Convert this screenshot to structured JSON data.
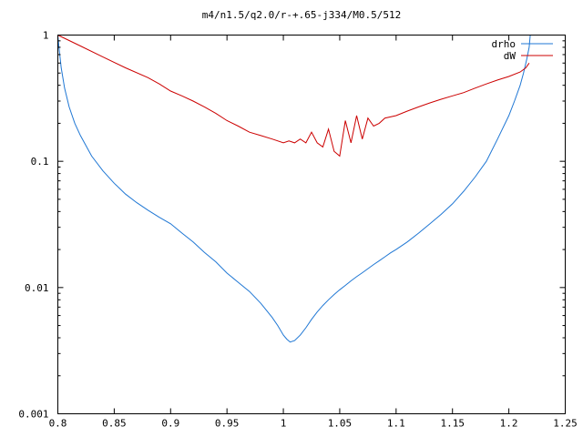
{
  "chart_data": {
    "type": "line",
    "title": "m4/n1.5/q2.0/r-+.65-j334/M0.5/512",
    "xlabel": "",
    "ylabel": "",
    "xlim": [
      0.8,
      1.25
    ],
    "ylim": [
      0.001,
      1
    ],
    "yscale": "log",
    "grid": false,
    "legend_position": "top-right",
    "x_ticks": [
      0.8,
      0.85,
      0.9,
      0.95,
      1,
      1.05,
      1.1,
      1.15,
      1.2,
      1.25
    ],
    "x_tick_labels": [
      "0.8",
      "0.85",
      "0.9",
      "0.95",
      "1",
      "1.05",
      "1.1",
      "1.15",
      "1.2",
      "1.25"
    ],
    "y_ticks": [
      0.001,
      0.01,
      0.1,
      1
    ],
    "y_tick_labels": [
      "0.001",
      "0.01",
      "0.1",
      "1"
    ],
    "series": [
      {
        "name": "drho",
        "color": "#1f77d4",
        "x": [
          0.8,
          0.801,
          0.803,
          0.806,
          0.81,
          0.815,
          0.82,
          0.83,
          0.84,
          0.85,
          0.86,
          0.87,
          0.88,
          0.89,
          0.9,
          0.91,
          0.92,
          0.93,
          0.94,
          0.95,
          0.96,
          0.97,
          0.98,
          0.99,
          0.995,
          1.0,
          1.003,
          1.006,
          1.01,
          1.015,
          1.02,
          1.025,
          1.03,
          1.035,
          1.04,
          1.045,
          1.05,
          1.055,
          1.06,
          1.065,
          1.07,
          1.075,
          1.08,
          1.085,
          1.09,
          1.095,
          1.1,
          1.11,
          1.12,
          1.13,
          1.14,
          1.15,
          1.16,
          1.17,
          1.18,
          1.19,
          1.2,
          1.205,
          1.21,
          1.213,
          1.216,
          1.218,
          1.219
        ],
        "y": [
          1.0,
          0.8,
          0.55,
          0.38,
          0.27,
          0.2,
          0.16,
          0.11,
          0.084,
          0.067,
          0.055,
          0.047,
          0.041,
          0.036,
          0.032,
          0.027,
          0.023,
          0.019,
          0.016,
          0.013,
          0.011,
          0.0093,
          0.0075,
          0.0058,
          0.005,
          0.0042,
          0.0039,
          0.0037,
          0.0038,
          0.0042,
          0.0048,
          0.0056,
          0.0064,
          0.0072,
          0.008,
          0.0088,
          0.0096,
          0.0104,
          0.0113,
          0.0122,
          0.0131,
          0.0141,
          0.0152,
          0.0163,
          0.0175,
          0.0188,
          0.02,
          0.023,
          0.027,
          0.032,
          0.038,
          0.046,
          0.058,
          0.075,
          0.1,
          0.15,
          0.23,
          0.3,
          0.4,
          0.5,
          0.65,
          0.8,
          1.0
        ]
      },
      {
        "name": "dW",
        "color": "#cc0000",
        "x": [
          0.8,
          0.82,
          0.84,
          0.86,
          0.88,
          0.89,
          0.9,
          0.91,
          0.92,
          0.93,
          0.94,
          0.95,
          0.96,
          0.97,
          0.98,
          0.99,
          1.0,
          1.005,
          1.01,
          1.015,
          1.02,
          1.025,
          1.03,
          1.035,
          1.04,
          1.045,
          1.05,
          1.055,
          1.06,
          1.065,
          1.07,
          1.075,
          1.08,
          1.085,
          1.09,
          1.1,
          1.11,
          1.12,
          1.13,
          1.14,
          1.15,
          1.16,
          1.17,
          1.18,
          1.19,
          1.2,
          1.21,
          1.215,
          1.218
        ],
        "y": [
          1.0,
          0.82,
          0.67,
          0.55,
          0.46,
          0.41,
          0.36,
          0.33,
          0.3,
          0.27,
          0.24,
          0.21,
          0.19,
          0.17,
          0.16,
          0.15,
          0.14,
          0.145,
          0.14,
          0.15,
          0.14,
          0.17,
          0.14,
          0.13,
          0.18,
          0.12,
          0.11,
          0.21,
          0.14,
          0.23,
          0.15,
          0.22,
          0.19,
          0.2,
          0.22,
          0.23,
          0.25,
          0.27,
          0.29,
          0.31,
          0.33,
          0.35,
          0.38,
          0.41,
          0.44,
          0.47,
          0.51,
          0.55,
          0.6
        ]
      }
    ]
  }
}
